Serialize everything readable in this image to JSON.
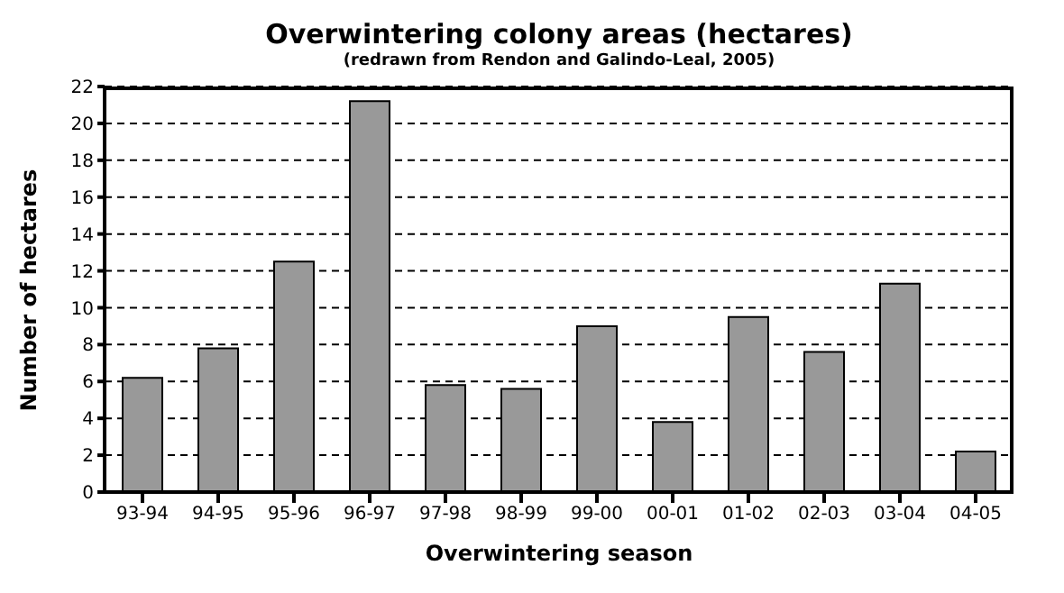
{
  "chart_data": {
    "type": "bar",
    "title": "Overwintering colony areas (hectares)",
    "subtitle": "(redrawn from Rendon and Galindo-Leal, 2005)",
    "xlabel": "Overwintering season",
    "ylabel": "Number of hectares",
    "categories": [
      "93-94",
      "94-95",
      "95-96",
      "96-97",
      "97-98",
      "98-99",
      "99-00",
      "00-01",
      "01-02",
      "02-03",
      "03-04",
      "04-05"
    ],
    "values": [
      6.2,
      7.8,
      12.5,
      21.2,
      5.8,
      5.6,
      9.0,
      3.8,
      9.5,
      7.6,
      11.3,
      2.2
    ],
    "color": "#999999",
    "ylim": [
      0,
      22
    ],
    "yticks": [
      0,
      2,
      4,
      6,
      8,
      10,
      12,
      14,
      16,
      18,
      20,
      22
    ],
    "grid": "y",
    "legend": false
  }
}
